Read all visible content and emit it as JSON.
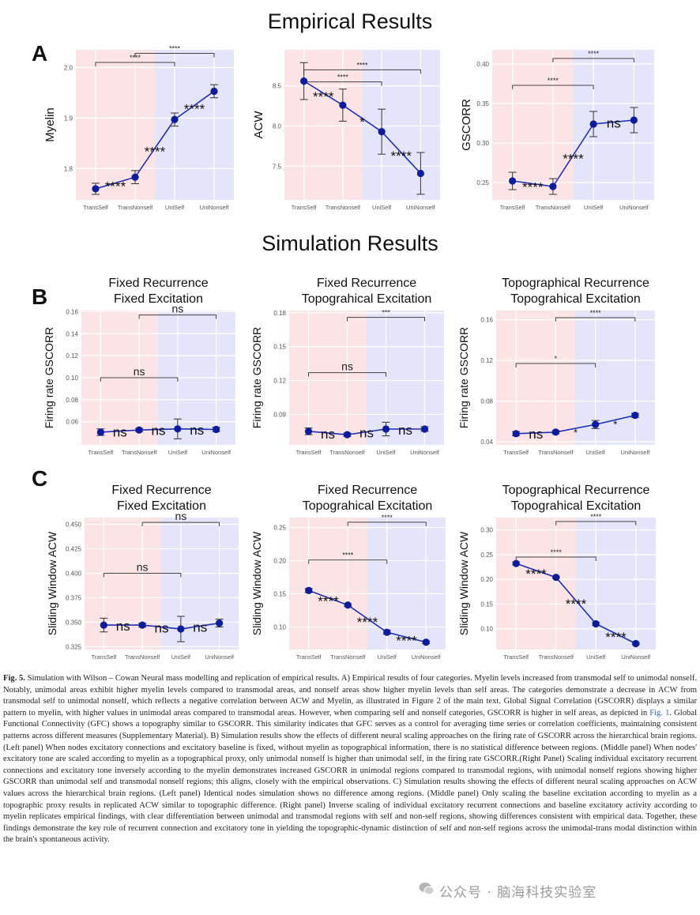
{
  "titles": {
    "empirical": "Empirical Results",
    "simulation": "Simulation Results"
  },
  "panel_letters": [
    "A",
    "B",
    "C"
  ],
  "colors": {
    "self_band": "#fbe3e6",
    "nonself_band": "#e4e4fb",
    "series": "#1f2fb8",
    "point": "#0d1c9a"
  },
  "chart_data": [
    {
      "id": "A1",
      "type": "line",
      "title": "",
      "xlabel": "",
      "ylabel": "Myelin",
      "categories": [
        "TransSelf",
        "TransNonself",
        "UniSelf",
        "UniNonself"
      ],
      "values": [
        1.76,
        1.783,
        1.897,
        1.953
      ],
      "err": [
        0.011,
        0.013,
        0.013,
        0.013
      ],
      "ylim": [
        1.738,
        2.035
      ],
      "yticks": [
        1.8,
        1.9,
        2.0
      ],
      "yticklabels": [
        "1.8",
        "1.9",
        "2.0"
      ],
      "pair_labels": [
        "****",
        "****",
        "****"
      ],
      "brackets": [
        {
          "from": 0,
          "to": 2,
          "label": "****",
          "y": 2.01
        },
        {
          "from": 1,
          "to": 3,
          "label": "****",
          "y": 2.028
        }
      ]
    },
    {
      "id": "A2",
      "type": "line",
      "title": "",
      "xlabel": "",
      "ylabel": "ACW",
      "categories": [
        "TransSelf",
        "TransNonself",
        "UniSelf",
        "UniNonself"
      ],
      "values": [
        8.56,
        8.26,
        7.93,
        7.41
      ],
      "err": [
        0.23,
        0.2,
        0.28,
        0.26
      ],
      "ylim": [
        7.08,
        8.95
      ],
      "yticks": [
        7.5,
        8.0,
        8.5
      ],
      "yticklabels": [
        "7.5",
        "8.0",
        "8.5"
      ],
      "pair_labels": [
        "****",
        "*",
        "****"
      ],
      "brackets": [
        {
          "from": 0,
          "to": 2,
          "label": "****",
          "y": 8.55
        },
        {
          "from": 0,
          "to": 3,
          "label": "****",
          "y": 8.7
        }
      ]
    },
    {
      "id": "A3",
      "type": "line",
      "title": "",
      "xlabel": "",
      "ylabel": "GSCORR",
      "categories": [
        "TransSelf",
        "TransNonself",
        "UniSelf",
        "UniNonself"
      ],
      "values": [
        0.252,
        0.245,
        0.324,
        0.329
      ],
      "err": [
        0.011,
        0.01,
        0.016,
        0.016
      ],
      "ylim": [
        0.228,
        0.418
      ],
      "yticks": [
        0.25,
        0.3,
        0.35,
        0.4
      ],
      "yticklabels": [
        "0.25",
        "0.30",
        "0.35",
        "0.40"
      ],
      "pair_labels": [
        "****",
        "****",
        "ns"
      ],
      "brackets": [
        {
          "from": 0,
          "to": 2,
          "label": "****",
          "y": 0.373
        },
        {
          "from": 1,
          "to": 3,
          "label": "****",
          "y": 0.407
        }
      ]
    },
    {
      "id": "B1",
      "type": "line",
      "title": "Fixed Recurrence\nFixed Excitation",
      "xlabel": "",
      "ylabel": "Firing rate GSCORR",
      "categories": [
        "TransSelf",
        "TransNonself",
        "UniSelf",
        "UniNonself"
      ],
      "values": [
        0.0505,
        0.0525,
        0.0535,
        0.053
      ],
      "err": [
        0.003,
        0.0015,
        0.009,
        0.002
      ],
      "ylim": [
        0.039,
        0.161
      ],
      "yticks": [
        0.06,
        0.08,
        0.1,
        0.12,
        0.14,
        0.16
      ],
      "yticklabels": [
        "0.06",
        "0.08",
        "0.10",
        "0.12",
        "0.14",
        "0.16"
      ],
      "pair_labels": [
        "ns",
        "ns",
        "ns"
      ],
      "brackets": [
        {
          "from": 0,
          "to": 2,
          "label": "ns",
          "y": 0.1
        },
        {
          "from": 1,
          "to": 3,
          "label": "ns",
          "y": 0.157
        }
      ]
    },
    {
      "id": "B2",
      "type": "line",
      "title": "Fixed Recurrence\nTopograhical Excitation",
      "xlabel": "",
      "ylabel": "Firing rate GSCORR",
      "categories": [
        "TransSelf",
        "TransNonself",
        "UniSelf",
        "UniNonself"
      ],
      "values": [
        0.075,
        0.072,
        0.077,
        0.077
      ],
      "err": [
        0.003,
        0.0015,
        0.006,
        0.002
      ],
      "ylim": [
        0.063,
        0.182
      ],
      "yticks": [
        0.09,
        0.12,
        0.15,
        0.18
      ],
      "yticklabels": [
        "0.09",
        "0.12",
        "0.15",
        "0.18"
      ],
      "pair_labels": [
        "ns",
        "ns",
        "ns"
      ],
      "brackets": [
        {
          "from": 0,
          "to": 2,
          "label": "ns",
          "y": 0.127
        },
        {
          "from": 1,
          "to": 3,
          "label": "***",
          "y": 0.176
        }
      ]
    },
    {
      "id": "B3",
      "type": "line",
      "title": "Topographical Recurrence\nTopograhical Excitation",
      "xlabel": "",
      "ylabel": "Firing rate GSCORR",
      "categories": [
        "TransSelf",
        "TransNonself",
        "UniSelf",
        "UniNonself"
      ],
      "values": [
        0.048,
        0.0495,
        0.057,
        0.066
      ],
      "err": [
        0.002,
        0.0015,
        0.004,
        0.002
      ],
      "ylim": [
        0.037,
        0.169
      ],
      "yticks": [
        0.04,
        0.08,
        0.12,
        0.16
      ],
      "yticklabels": [
        "0.04",
        "0.08",
        "0.12",
        "0.16"
      ],
      "pair_labels": [
        "ns",
        "*",
        "*"
      ],
      "brackets": [
        {
          "from": 0,
          "to": 2,
          "label": "*",
          "y": 0.117
        },
        {
          "from": 1,
          "to": 3,
          "label": "****",
          "y": 0.162
        }
      ]
    },
    {
      "id": "C1",
      "type": "line",
      "title": "Fixed Recurrence\nFixed Excitation",
      "xlabel": "",
      "ylabel": "Sliding Window ACW",
      "categories": [
        "TransSelf",
        "TransNonself",
        "UniSelf",
        "UniNonself"
      ],
      "values": [
        0.347,
        0.347,
        0.343,
        0.349
      ],
      "err": [
        0.007,
        0.002,
        0.013,
        0.004
      ],
      "ylim": [
        0.322,
        0.457
      ],
      "yticks": [
        0.325,
        0.35,
        0.375,
        0.4,
        0.425,
        0.45
      ],
      "yticklabels": [
        "0.325",
        "0.350",
        "0.375",
        "0.400",
        "0.425",
        "0.450"
      ],
      "pair_labels": [
        "ns",
        "ns",
        "ns"
      ],
      "brackets": [
        {
          "from": 0,
          "to": 2,
          "label": "ns",
          "y": 0.4
        },
        {
          "from": 1,
          "to": 3,
          "label": "ns",
          "y": 0.452
        }
      ]
    },
    {
      "id": "C2",
      "type": "line",
      "title": "Fixed Recurrence\nTopograhical Excitation",
      "xlabel": "",
      "ylabel": "Sliding Window ACW",
      "categories": [
        "TransSelf",
        "TransNonself",
        "UniSelf",
        "UniNonself"
      ],
      "values": [
        0.155,
        0.133,
        0.092,
        0.077
      ],
      "err": [
        0.003,
        0.002,
        0.003,
        0.002
      ],
      "ylim": [
        0.066,
        0.265
      ],
      "yticks": [
        0.1,
        0.15,
        0.2,
        0.25
      ],
      "yticklabels": [
        "0.10",
        "0.15",
        "0.20",
        "0.25"
      ],
      "pair_labels": [
        "****",
        "****",
        "****"
      ],
      "brackets": [
        {
          "from": 0,
          "to": 2,
          "label": "****",
          "y": 0.201
        },
        {
          "from": 1,
          "to": 3,
          "label": "****",
          "y": 0.258
        }
      ]
    },
    {
      "id": "C3",
      "type": "line",
      "title": "Topographical Recurrence\nTopograhical Excitation",
      "xlabel": "",
      "ylabel": "Sliding Window ACW",
      "categories": [
        "TransSelf",
        "TransNonself",
        "UniSelf",
        "UniNonself"
      ],
      "values": [
        0.232,
        0.204,
        0.11,
        0.07
      ],
      "err": [
        0.003,
        0.002,
        0.003,
        0.002
      ],
      "ylim": [
        0.058,
        0.325
      ],
      "yticks": [
        0.1,
        0.15,
        0.2,
        0.25,
        0.3
      ],
      "yticklabels": [
        "0.10",
        "0.15",
        "0.20",
        "0.25",
        "0.30"
      ],
      "pair_labels": [
        "****",
        "****",
        "****"
      ],
      "brackets": [
        {
          "from": 0,
          "to": 2,
          "label": "****",
          "y": 0.245
        },
        {
          "from": 1,
          "to": 3,
          "label": "****",
          "y": 0.317
        }
      ]
    }
  ],
  "caption": {
    "lead": "Fig. 5.",
    "body_1": " Simulation with Wilson – Cowan Neural mass modelling and replication of empirical results. A) Empirical results of four categories. Myelin levels increased from transmodal self to unimodal nonself. Notably, unimodal areas exhibit higher myelin levels compared to transmodal areas, and nonself areas show higher myelin levels than self areas. The categories demonstrate a decrease in ACW from transmodal self to unimodal nonself, which reflects a negative correlation between ACW and Myelin, as illustrated in Figure 2 of the main text. Global Signal Correlation (GSCORR) displays a similar pattern to myelin, with higher values in unimodal areas compared to transmodal areas. However, when comparing self and nonself categories, GSCORR is higher in self areas, as depicted in ",
    "link": "Fig. 1",
    "body_2": ". Global Functional Connectivity (GFC) shows a topography similar to GSCORR. This similarity indicates that GFC serves as a control for averaging time series or correlation coefficients, maintaining consistent patterns across different measures (Supplementary Material). B) Simulation results show the effects of different neural scaling approaches on the firing rate of GSCORR across the hierarchical brain regions. (Left panel) When nodes excitatory connections and excitatory baseline is fixed, without myelin as topographical information, there is no statistical difference between regions. (Middle panel) When nodes' excitatory tone are scaled according to myelin as a topographical proxy, only unimodal nonself is higher than unimodal self, in the firing rate GSCORR.(Right Panel) Scaling individual excitatory recurrent connections and excitatory tone inversely according to the myelin demonstrates increased GSCORR in unimodal regions compared to transmodal regions, with unimodal nonself regions showing higher GSCORR than unimodal self and transmodal nonself regions; this aligns, closely with the empirical observations. C) Simulation results showing the effects of different neural scaling approaches on ACW values across the hierarchical brain regions. (Left panel) Identical nodes simulation shows no difference among regions. (Middle panel) Only scaling the baseline excitation according to myelin as a topographic proxy results in replicated ACW similar to topographic difference. (Right panel) Inverse scaling of individual excitatory recurrent connections and baseline excitatory activity according to myelin replicates empirical findings, with clear differentiation between unimodal and transmodal regions with self and non-self regions, showing differences consistent with empirical data. Together, these findings demonstrate the key role of recurrent connection and excitatory tone in yielding the topographic-dynamic distinction of self and non-self regions across the unimodal-trans modal distinction within the brain's spontaneous activity."
  },
  "watermark": "公众号 · 脑海科技实验室"
}
